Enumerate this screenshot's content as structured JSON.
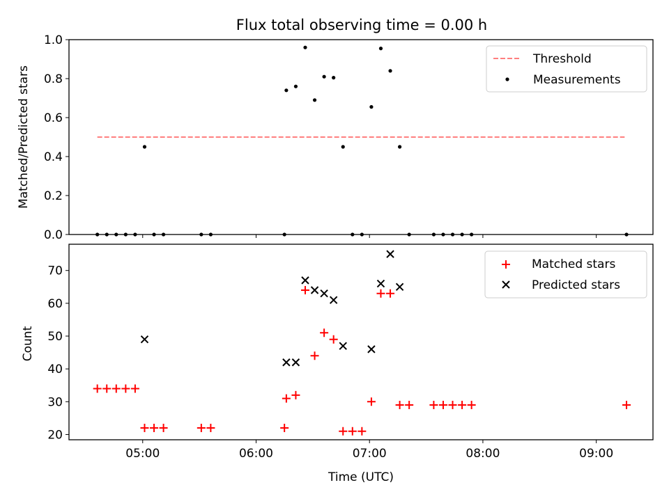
{
  "chart_data": [
    {
      "type": "scatter",
      "title": "Flux total observing time = 0.00 h",
      "xlabel": "",
      "ylabel": "Matched/Predicted stars",
      "xlim": [
        "04:21",
        "09:30"
      ],
      "ylim": [
        0.0,
        1.0
      ],
      "yticks": [
        0.0,
        0.2,
        0.4,
        0.6,
        0.8,
        1.0
      ],
      "ytick_labels": [
        "0.0",
        "0.2",
        "0.4",
        "0.6",
        "0.8",
        "1.0"
      ],
      "xticks": [
        "05:00",
        "06:00",
        "07:00",
        "08:00",
        "09:00"
      ],
      "xtick_labels_visible": false,
      "legend": {
        "placement": "top-right",
        "entries": [
          "Threshold",
          "Measurements"
        ]
      },
      "threshold": {
        "name": "Threshold",
        "value": 0.5,
        "x_range": [
          "04:36",
          "09:15"
        ],
        "color": "#ff7f7f",
        "style": "dashed"
      },
      "series": [
        {
          "name": "Measurements",
          "marker": "dot",
          "color": "#000000",
          "points": [
            [
              "04:36",
              0.0
            ],
            [
              "04:41",
              0.0
            ],
            [
              "04:46",
              0.0
            ],
            [
              "04:51",
              0.0
            ],
            [
              "04:56",
              0.0
            ],
            [
              "05:01",
              0.45
            ],
            [
              "05:06",
              0.0
            ],
            [
              "05:11",
              0.0
            ],
            [
              "05:31",
              0.0
            ],
            [
              "05:36",
              0.0
            ],
            [
              "06:15",
              0.0
            ],
            [
              "06:16",
              0.74
            ],
            [
              "06:21",
              0.76
            ],
            [
              "06:26",
              0.96
            ],
            [
              "06:31",
              0.69
            ],
            [
              "06:36",
              0.81
            ],
            [
              "06:41",
              0.805
            ],
            [
              "06:46",
              0.45
            ],
            [
              "06:51",
              0.0
            ],
            [
              "06:56",
              0.0
            ],
            [
              "07:01",
              0.655
            ],
            [
              "07:06",
              0.955
            ],
            [
              "07:11",
              0.84
            ],
            [
              "07:16",
              0.45
            ],
            [
              "07:21",
              0.0
            ],
            [
              "07:34",
              0.0
            ],
            [
              "07:39",
              0.0
            ],
            [
              "07:44",
              0.0
            ],
            [
              "07:49",
              0.0
            ],
            [
              "07:54",
              0.0
            ],
            [
              "09:16",
              0.0
            ]
          ]
        }
      ]
    },
    {
      "type": "scatter",
      "title": "",
      "xlabel": "Time (UTC)",
      "ylabel": "Count",
      "xlim": [
        "04:21",
        "09:30"
      ],
      "ylim": [
        18.4,
        78.0
      ],
      "yticks": [
        20,
        30,
        40,
        50,
        60,
        70
      ],
      "ytick_labels": [
        "20",
        "30",
        "40",
        "50",
        "60",
        "70"
      ],
      "xticks": [
        "05:00",
        "06:00",
        "07:00",
        "08:00",
        "09:00"
      ],
      "xtick_labels": [
        "05:00",
        "06:00",
        "07:00",
        "08:00",
        "09:00"
      ],
      "legend": {
        "placement": "top-right",
        "entries": [
          "Matched stars",
          "Predicted stars"
        ]
      },
      "series": [
        {
          "name": "Matched stars",
          "marker": "plus",
          "color": "#ff0000",
          "points": [
            [
              "04:36",
              34
            ],
            [
              "04:41",
              34
            ],
            [
              "04:46",
              34
            ],
            [
              "04:51",
              34
            ],
            [
              "04:56",
              34
            ],
            [
              "05:01",
              22
            ],
            [
              "05:06",
              22
            ],
            [
              "05:11",
              22
            ],
            [
              "05:31",
              22
            ],
            [
              "05:36",
              22
            ],
            [
              "06:15",
              22
            ],
            [
              "06:16",
              31
            ],
            [
              "06:21",
              32
            ],
            [
              "06:26",
              64
            ],
            [
              "06:31",
              44
            ],
            [
              "06:36",
              51
            ],
            [
              "06:41",
              49
            ],
            [
              "06:46",
              21
            ],
            [
              "06:51",
              21
            ],
            [
              "06:56",
              21
            ],
            [
              "07:01",
              30
            ],
            [
              "07:06",
              63
            ],
            [
              "07:11",
              63
            ],
            [
              "07:16",
              29
            ],
            [
              "07:21",
              29
            ],
            [
              "07:34",
              29
            ],
            [
              "07:39",
              29
            ],
            [
              "07:44",
              29
            ],
            [
              "07:49",
              29
            ],
            [
              "07:54",
              29
            ],
            [
              "09:16",
              29
            ]
          ]
        },
        {
          "name": "Predicted stars",
          "marker": "x",
          "color": "#000000",
          "points": [
            [
              "05:01",
              49
            ],
            [
              "06:16",
              42
            ],
            [
              "06:21",
              42
            ],
            [
              "06:26",
              67
            ],
            [
              "06:31",
              64
            ],
            [
              "06:36",
              63
            ],
            [
              "06:41",
              61
            ],
            [
              "06:46",
              47
            ],
            [
              "07:01",
              46
            ],
            [
              "07:06",
              66
            ],
            [
              "07:11",
              75
            ],
            [
              "07:16",
              65
            ]
          ]
        }
      ]
    }
  ]
}
